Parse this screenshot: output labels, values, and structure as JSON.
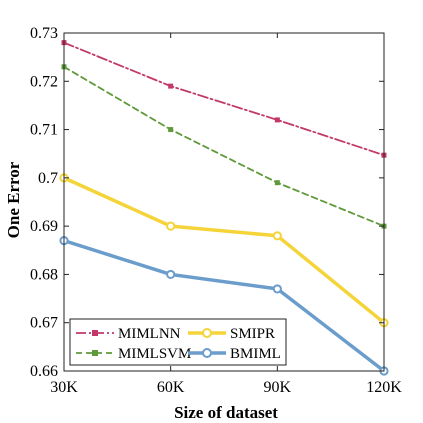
{
  "chart_data": {
    "type": "line",
    "xlabel": "Size of dataset",
    "ylabel": "One Error",
    "categories": [
      "30K",
      "60K",
      "90K",
      "120K"
    ],
    "yticks": [
      0.66,
      0.67,
      0.68,
      0.69,
      0.7,
      0.71,
      0.72,
      0.73
    ],
    "ytick_labels": [
      "0.66",
      "0.67",
      "0.68",
      "0.69",
      "0.7",
      "0.71",
      "0.72",
      "0.73"
    ],
    "ylim": [
      0.66,
      0.73
    ],
    "grid": false,
    "legend_position": "bottom-left",
    "series": [
      {
        "name": "MIMLNN",
        "values": [
          0.728,
          0.719,
          0.712,
          0.7047
        ],
        "color": "#c2386b",
        "style": "dashdot",
        "marker": "square"
      },
      {
        "name": "MIMLSVM",
        "values": [
          0.723,
          0.71,
          0.699,
          0.69
        ],
        "color": "#5f9a3a",
        "style": "dashed",
        "marker": "square"
      },
      {
        "name": "SMIPR",
        "values": [
          0.7,
          0.69,
          0.688,
          0.67
        ],
        "color": "#f5d43a",
        "style": "solid",
        "marker": "circle"
      },
      {
        "name": "BMIML",
        "values": [
          0.687,
          0.68,
          0.677,
          0.66
        ],
        "color": "#6a9ccc",
        "style": "solid",
        "marker": "circle"
      }
    ]
  }
}
